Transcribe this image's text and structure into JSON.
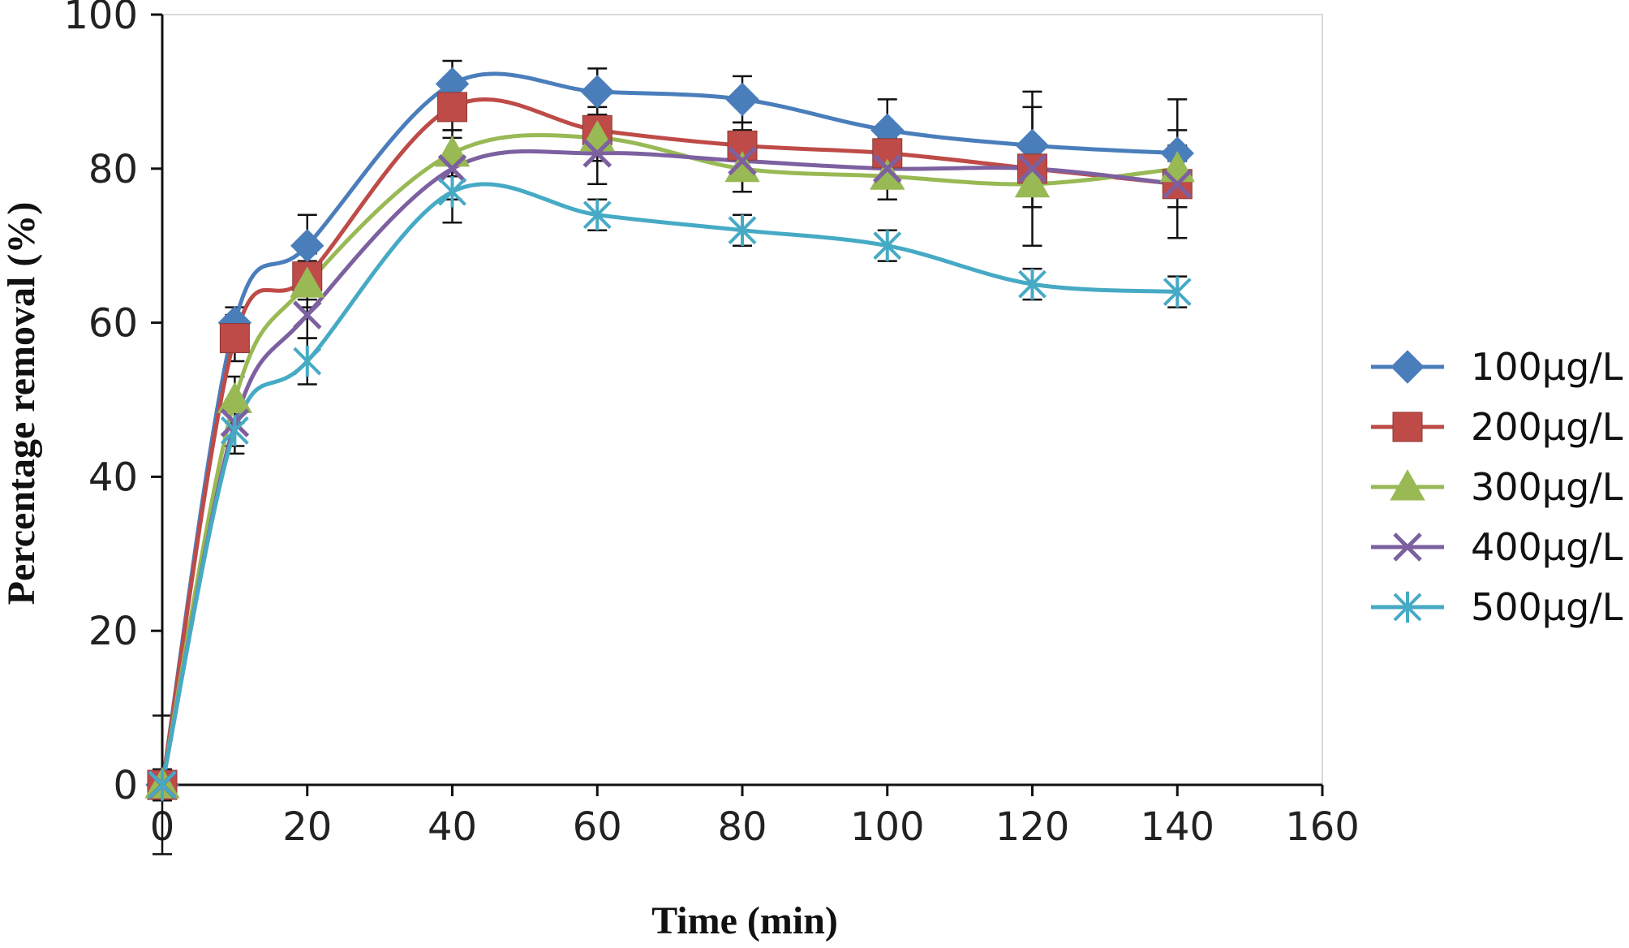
{
  "chart_data": {
    "type": "line",
    "xlabel": "Time (min)",
    "ylabel": "Percentage removal (%)",
    "xlim": [
      0,
      160
    ],
    "ylim": [
      0,
      100
    ],
    "x_ticks": [
      "0",
      "20",
      "40",
      "60",
      "80",
      "100",
      "120",
      "140",
      "160"
    ],
    "y_ticks": [
      "0",
      "20",
      "40",
      "60",
      "80",
      "100"
    ],
    "grid": false,
    "legend_position": "right",
    "smoothed": true,
    "x": [
      0,
      10,
      20,
      40,
      60,
      80,
      100,
      120,
      140
    ],
    "series": [
      {
        "name": "100µg/L",
        "color": "#4a7ebb",
        "marker": "diamond",
        "values": [
          0,
          60,
          70,
          91,
          90,
          89,
          85,
          83,
          82
        ],
        "errors": [
          9,
          2,
          4,
          3,
          3,
          3,
          4,
          5,
          7
        ]
      },
      {
        "name": "200µg/L",
        "color": "#be4b48",
        "marker": "square",
        "values": [
          0,
          58,
          66,
          88,
          85,
          83,
          82,
          80,
          78
        ],
        "errors": [
          2,
          3,
          3,
          3,
          3,
          3,
          3,
          3,
          3
        ]
      },
      {
        "name": "300µg/L",
        "color": "#98b954",
        "marker": "triangle",
        "values": [
          0,
          50,
          65,
          82,
          84,
          80,
          79,
          78,
          80
        ],
        "errors": [
          2,
          3,
          3,
          3,
          3,
          3,
          3,
          3,
          3
        ]
      },
      {
        "name": "400µg/L",
        "color": "#7d60a0",
        "marker": "x",
        "values": [
          0,
          47,
          61,
          80,
          82,
          81,
          80,
          80,
          78
        ],
        "errors": [
          2,
          3,
          3,
          4,
          4,
          4,
          4,
          10,
          7
        ]
      },
      {
        "name": "500µg/L",
        "color": "#46aac5",
        "marker": "star",
        "values": [
          0,
          46,
          55,
          77,
          74,
          72,
          70,
          65,
          64
        ],
        "errors": [
          2,
          3,
          3,
          4,
          2,
          2,
          2,
          2,
          2
        ]
      }
    ]
  }
}
